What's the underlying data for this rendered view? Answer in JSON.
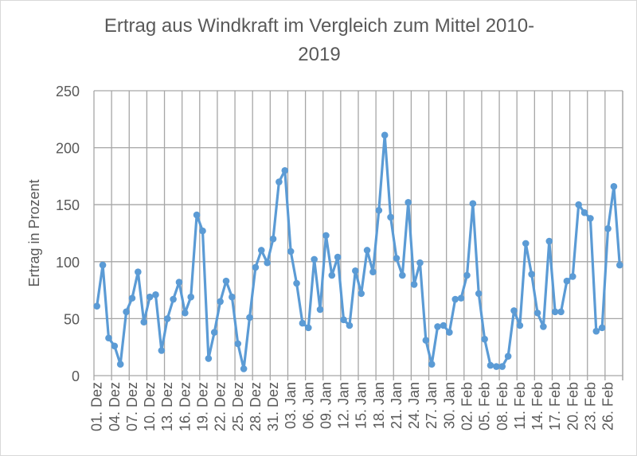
{
  "chart_data": {
    "type": "line",
    "title": "Ertrag aus Windkraft im Vergleich zum Mittel 2010-2019",
    "title_lines": [
      "Ertrag aus Windkraft im Vergleich zum Mittel 2010-",
      "2019"
    ],
    "xlabel": "",
    "ylabel": "Ertrag in Prozent",
    "ylim": [
      0,
      250
    ],
    "yticks": [
      0,
      50,
      100,
      150,
      200,
      250
    ],
    "grid": true,
    "legend": "none",
    "color": "#5B9BD5",
    "categories": [
      "01. Dez",
      "02. Dez",
      "03. Dez",
      "04. Dez",
      "05. Dez",
      "06. Dez",
      "07. Dez",
      "08. Dez",
      "09. Dez",
      "10. Dez",
      "11. Dez",
      "12. Dez",
      "13. Dez",
      "14. Dez",
      "15. Dez",
      "16. Dez",
      "17. Dez",
      "18. Dez",
      "19. Dez",
      "20. Dez",
      "21. Dez",
      "22. Dez",
      "23. Dez",
      "24. Dez",
      "25. Dez",
      "26. Dez",
      "27. Dez",
      "28. Dez",
      "29. Dez",
      "30. Dez",
      "31. Dez",
      "01. Jan",
      "02. Jan",
      "03. Jan",
      "04. Jan",
      "05. Jan",
      "06. Jan",
      "07. Jan",
      "08. Jan",
      "09. Jan",
      "10. Jan",
      "11. Jan",
      "12. Jan",
      "13. Jan",
      "14. Jan",
      "15. Jan",
      "16. Jan",
      "17. Jan",
      "18. Jan",
      "19. Jan",
      "20. Jan",
      "21. Jan",
      "22. Jan",
      "23. Jan",
      "24. Jan",
      "25. Jan",
      "26. Jan",
      "27. Jan",
      "28. Jan",
      "29. Jan",
      "30. Jan",
      "31. Jan",
      "01. Feb",
      "02. Feb",
      "03. Feb",
      "04. Feb",
      "05. Feb",
      "06. Feb",
      "07. Feb",
      "08. Feb",
      "09. Feb",
      "10. Feb",
      "11. Feb",
      "12. Feb",
      "13. Feb",
      "14. Feb",
      "15. Feb",
      "16. Feb",
      "17. Feb",
      "18. Feb",
      "19. Feb",
      "20. Feb",
      "21. Feb",
      "22. Feb",
      "23. Feb",
      "24. Feb",
      "25. Feb",
      "26. Feb",
      "27. Feb",
      "28. Feb"
    ],
    "tick_labels": [
      "01. Dez",
      "04. Dez",
      "07. Dez",
      "10. Dez",
      "13. Dez",
      "16. Dez",
      "19. Dez",
      "22. Dez",
      "25. Dez",
      "28. Dez",
      "31. Dez",
      "03. Jan",
      "06. Jan",
      "09. Jan",
      "12. Jan",
      "15. Jan",
      "18. Jan",
      "21. Jan",
      "24. Jan",
      "27. Jan",
      "30. Jan",
      "02. Feb",
      "05. Feb",
      "08. Feb",
      "11. Feb",
      "14. Feb",
      "17. Feb",
      "20. Feb",
      "23. Feb",
      "26. Feb"
    ],
    "values": [
      61,
      97,
      33,
      26,
      10,
      56,
      68,
      91,
      47,
      69,
      71,
      22,
      50,
      67,
      82,
      55,
      69,
      141,
      127,
      15,
      38,
      65,
      83,
      69,
      28,
      6,
      51,
      95,
      110,
      99,
      120,
      170,
      180,
      109,
      81,
      46,
      42,
      102,
      58,
      123,
      88,
      104,
      49,
      44,
      92,
      72,
      110,
      91,
      145,
      211,
      139,
      103,
      88,
      152,
      80,
      99,
      31,
      10,
      43,
      44,
      38,
      67,
      68,
      88,
      151,
      72,
      32,
      9,
      8,
      8,
      17,
      57,
      44,
      116,
      89,
      55,
      43,
      118,
      56,
      56,
      83,
      87,
      150,
      143,
      138,
      39,
      42,
      129,
      166,
      97
    ]
  }
}
